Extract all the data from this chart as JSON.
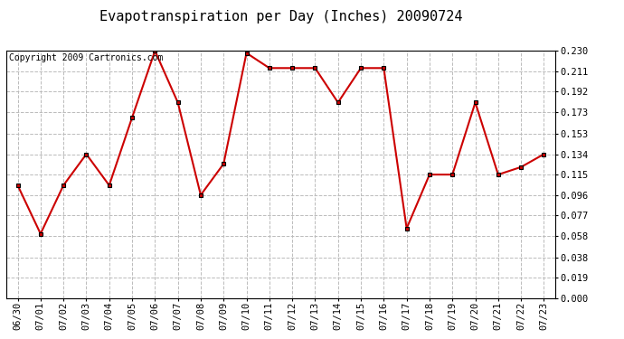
{
  "title": "Evapotranspiration per Day (Inches) 20090724",
  "copyright_text": "Copyright 2009 Cartronics.com",
  "dates": [
    "06/30",
    "07/01",
    "07/02",
    "07/03",
    "07/04",
    "07/05",
    "07/06",
    "07/07",
    "07/08",
    "07/09",
    "07/10",
    "07/11",
    "07/12",
    "07/13",
    "07/14",
    "07/15",
    "07/16",
    "07/17",
    "07/18",
    "07/19",
    "07/20",
    "07/21",
    "07/22",
    "07/23"
  ],
  "values": [
    0.105,
    0.06,
    0.105,
    0.134,
    0.105,
    0.168,
    0.23,
    0.182,
    0.096,
    0.125,
    0.228,
    0.214,
    0.214,
    0.214,
    0.182,
    0.214,
    0.214,
    0.065,
    0.115,
    0.115,
    0.182,
    0.115,
    0.122,
    0.134
  ],
  "line_color": "#cc0000",
  "marker": "s",
  "marker_color": "#000000",
  "marker_facecolor": "#cc0000",
  "marker_size": 3,
  "ylim": [
    0.0,
    0.23
  ],
  "yticks": [
    0.0,
    0.019,
    0.038,
    0.058,
    0.077,
    0.096,
    0.115,
    0.134,
    0.153,
    0.173,
    0.192,
    0.211,
    0.23
  ],
  "background_color": "#ffffff",
  "grid_color": "#bbbbbb",
  "title_fontsize": 11,
  "copyright_fontsize": 7,
  "tick_fontsize": 7.5,
  "figwidth": 6.9,
  "figheight": 3.75,
  "dpi": 100
}
